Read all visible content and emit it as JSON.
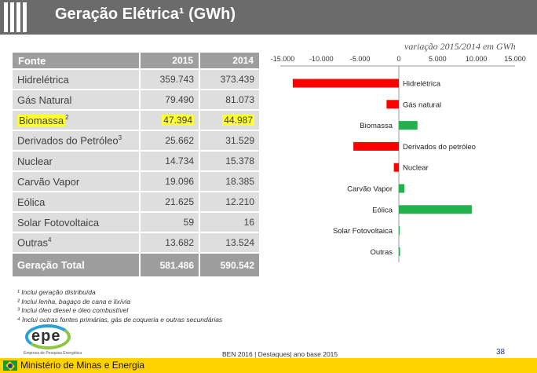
{
  "header": {
    "title": "Geração Elétrica¹ (GWh)"
  },
  "chart_subtitle": "variação 2015/2014 em GWh",
  "table": {
    "columns": [
      "Fonte",
      "2015",
      "2014"
    ],
    "rows": [
      {
        "name": "Hidrelétrica",
        "v2015": "359.743",
        "v2014": "373.439"
      },
      {
        "name": "Gás Natural",
        "v2015": "79.490",
        "v2014": "81.073"
      },
      {
        "name": "Biomassa",
        "sup": "2",
        "v2015": "47.394",
        "v2014": "44.987",
        "highlight": true
      },
      {
        "name": "Derivados do Petróleo",
        "sup": "3",
        "v2015": "25.662",
        "v2014": "31.529"
      },
      {
        "name": "Nuclear",
        "v2015": "14.734",
        "v2014": "15.378"
      },
      {
        "name": "Carvão Vapor",
        "v2015": "19.096",
        "v2014": "18.385"
      },
      {
        "name": "Eólica",
        "v2015": "21.625",
        "v2014": "12.210"
      },
      {
        "name": "Solar Fotovoltaica",
        "v2015": "59",
        "v2014": "16"
      },
      {
        "name": "Outras",
        "sup": "4",
        "v2015": "13.682",
        "v2014": "13.524"
      }
    ],
    "total": {
      "name": "Geração Total",
      "v2015": "581.486",
      "v2014": "590.542"
    }
  },
  "notes": [
    "¹ Inclui geração distribuída",
    "² Inclui lenha, bagaço de cana e lixívia",
    "³ Inclui óleo diesel e óleo combustível",
    "⁴ Inclui outras fontes primárias, gás de coqueria e outras secundárias"
  ],
  "chart_data": {
    "type": "bar",
    "orientation": "horizontal",
    "title": "",
    "xlim": [
      -15000,
      15000
    ],
    "xticks": [
      -15000,
      -10000,
      -5000,
      0,
      5000,
      10000,
      15000
    ],
    "xtick_labels": [
      "-15.000",
      "-10.000",
      "-5.000",
      "0",
      "5.000",
      "10.000",
      "15.000"
    ],
    "categories": [
      "Hidrelétrica",
      "Gás natural",
      "Biomassa",
      "Derivados do petróleo",
      "Nuclear",
      "Carvão Vapor",
      "Eólica",
      "Solar Fotovoltaica",
      "Outras"
    ],
    "values": [
      -13696,
      -1583,
      2407,
      -5867,
      -644,
      711,
      9415,
      43,
      158
    ],
    "colors": {
      "negative": "#ff0000",
      "positive": "#22b14c"
    },
    "grid": false
  },
  "footer": {
    "logo_text": "epe",
    "logo_subtitle": "Empresa de Pesquisa Energética",
    "center_text": "BEN 2016 | Destaques| ano base 2015",
    "page_number": "38",
    "ministry": "Ministério de Minas e Energia"
  }
}
